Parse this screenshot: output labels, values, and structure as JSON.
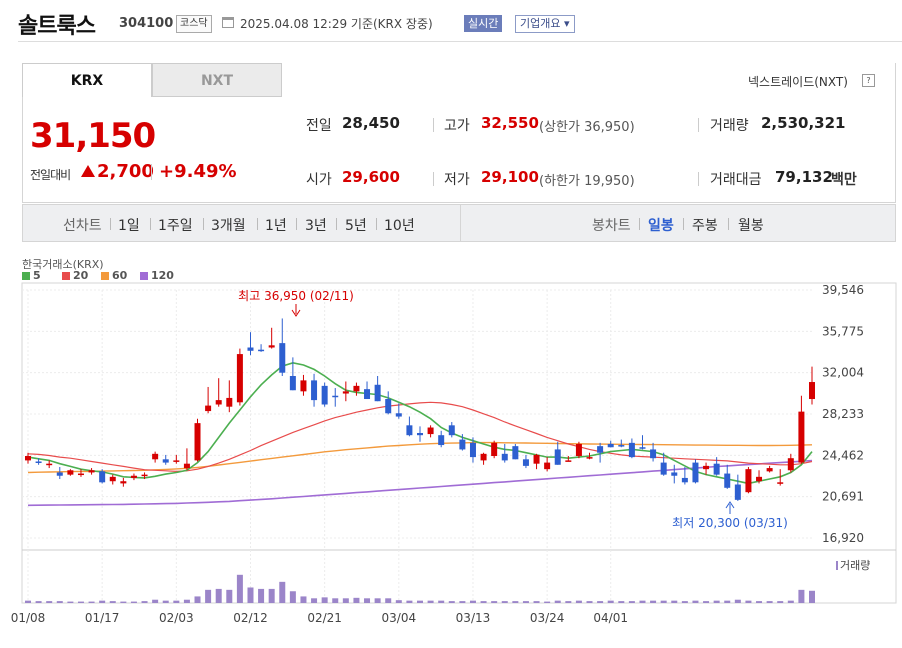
{
  "header": {
    "name": "솔트룩스",
    "code": "304100",
    "market": "코스닥",
    "datetime": "2025.04.08 12:29 기준(KRX 장중)",
    "realtime_label": "실시간",
    "company_label": "기업개요 ▾"
  },
  "tabs": [
    "KRX",
    "NXT"
  ],
  "nxt_link": "넥스트레이드(NXT)",
  "quote": {
    "price": "31,150",
    "change_label": "전일대비",
    "change_amount": "2,700",
    "change_pct": "+9.49%"
  },
  "stats": {
    "prev_close_label": "전일",
    "prev_close": "28,450",
    "high_label": "고가",
    "high": "32,550",
    "upper_limit": "(상한가 36,950)",
    "volume_label": "거래량",
    "volume": "2,530,321",
    "open_label": "시가",
    "open": "29,600",
    "low_label": "저가",
    "low": "29,100",
    "lower_limit": "(하한가 19,950)",
    "trade_value_label": "거래대금",
    "trade_value": "79,132",
    "trade_value_unit": "백만"
  },
  "toolbar": {
    "line_chart": "선차트",
    "periods": [
      "1일",
      "1주일",
      "3개월",
      "1년",
      "3년",
      "5년",
      "10년"
    ],
    "candle_chart": "봉차트",
    "candle_periods": [
      "일봉",
      "주봉",
      "월봉"
    ]
  },
  "colors": {
    "up": "#d60000",
    "down": "#2d5fd0",
    "ma5": "#4caf50",
    "ma20": "#e84c4c",
    "ma60": "#f39a3c",
    "ma120": "#a06cd5"
  },
  "chart_data": {
    "type": "candlestick",
    "title": "한국거래소(KRX)",
    "legend": [
      {
        "name": "5",
        "color": "#4caf50"
      },
      {
        "name": "20",
        "color": "#e84c4c"
      },
      {
        "name": "60",
        "color": "#f39a3c"
      },
      {
        "name": "120",
        "color": "#a06cd5"
      }
    ],
    "y_ticks": [
      "39,546",
      "35,775",
      "32,004",
      "28,233",
      "24,462",
      "20,691",
      "16,920"
    ],
    "ylim": [
      16920,
      39546
    ],
    "x_ticks": [
      "01/08",
      "01/17",
      "02/03",
      "02/12",
      "02/21",
      "03/04",
      "03/13",
      "03/24",
      "04/01"
    ],
    "x_tick_index": [
      0,
      7,
      14,
      21,
      28,
      35,
      42,
      49,
      55
    ],
    "annotation_high": "최고 36,950 (02/11)",
    "annotation_low": "최저 20,300 (03/31)",
    "volume_label": "거래량",
    "candles": [
      [
        24000,
        24700,
        23700,
        24400
      ],
      [
        23900,
        24200,
        23600,
        23800
      ],
      [
        23600,
        24000,
        23300,
        23700
      ],
      [
        22900,
        23400,
        22300,
        22600
      ],
      [
        22700,
        23200,
        22600,
        23100
      ],
      [
        22800,
        23200,
        22500,
        22800
      ],
      [
        22900,
        23300,
        22700,
        23100
      ],
      [
        23000,
        23200,
        21900,
        22000
      ],
      [
        22100,
        22700,
        21800,
        22500
      ],
      [
        21900,
        22400,
        21600,
        22100
      ],
      [
        22400,
        22800,
        22200,
        22600
      ],
      [
        22600,
        22900,
        22300,
        22700
      ],
      [
        24100,
        24800,
        23800,
        24600
      ],
      [
        24100,
        24500,
        23600,
        23800
      ],
      [
        23900,
        24500,
        23700,
        24000
      ],
      [
        23300,
        25100,
        23100,
        23700
      ],
      [
        24000,
        27800,
        23900,
        27400
      ],
      [
        28500,
        30700,
        28300,
        29000
      ],
      [
        29100,
        31500,
        28900,
        29500
      ],
      [
        28900,
        31300,
        28400,
        29700
      ],
      [
        29300,
        34200,
        29000,
        33700
      ],
      [
        34300,
        35700,
        33600,
        34000
      ],
      [
        34100,
        34600,
        33900,
        34000
      ],
      [
        34300,
        36100,
        34200,
        34500
      ],
      [
        34700,
        36950,
        31700,
        32000
      ],
      [
        31700,
        33400,
        30400,
        30400
      ],
      [
        30300,
        31800,
        29900,
        31300
      ],
      [
        31300,
        31900,
        28900,
        29500
      ],
      [
        30800,
        31100,
        28900,
        29100
      ],
      [
        29900,
        30600,
        28900,
        29800
      ],
      [
        30100,
        31200,
        29400,
        30300
      ],
      [
        30300,
        31100,
        29900,
        30800
      ],
      [
        30500,
        31200,
        29600,
        29600
      ],
      [
        30900,
        31700,
        29400,
        29400
      ],
      [
        29600,
        30300,
        28200,
        28300
      ],
      [
        28300,
        29200,
        27800,
        28000
      ],
      [
        27200,
        28000,
        26200,
        26300
      ],
      [
        26500,
        27100,
        25700,
        26300
      ],
      [
        26400,
        27200,
        26100,
        27000
      ],
      [
        26300,
        26700,
        25200,
        25400
      ],
      [
        27200,
        27500,
        26100,
        26300
      ],
      [
        25900,
        26400,
        24900,
        25000
      ],
      [
        25600,
        26100,
        23800,
        24300
      ],
      [
        24000,
        24700,
        23600,
        24600
      ],
      [
        24400,
        25800,
        24200,
        25600
      ],
      [
        24600,
        25500,
        23800,
        24000
      ],
      [
        25300,
        25500,
        24100,
        24100
      ],
      [
        24100,
        24500,
        23300,
        23500
      ],
      [
        23700,
        24600,
        23200,
        24500
      ],
      [
        23200,
        24300,
        23000,
        23800
      ],
      [
        25000,
        25700,
        23600,
        23600
      ],
      [
        24000,
        24400,
        23900,
        24000
      ],
      [
        24400,
        25700,
        24200,
        25500
      ],
      [
        24200,
        24700,
        24100,
        24300
      ],
      [
        25300,
        25600,
        23800,
        24700
      ],
      [
        25500,
        25800,
        25200,
        25200
      ],
      [
        25400,
        25900,
        25200,
        25300
      ],
      [
        25600,
        26000,
        24200,
        24300
      ],
      [
        25200,
        26300,
        25000,
        25100
      ],
      [
        25000,
        25600,
        23900,
        24200
      ],
      [
        23800,
        24700,
        22600,
        22700
      ],
      [
        22900,
        23600,
        21900,
        22600
      ],
      [
        22400,
        23400,
        21800,
        22000
      ],
      [
        23800,
        24100,
        21900,
        22000
      ],
      [
        23200,
        23800,
        22700,
        23500
      ],
      [
        23700,
        24300,
        22600,
        22700
      ],
      [
        22800,
        23600,
        21400,
        21500
      ],
      [
        21800,
        22700,
        20300,
        20400
      ],
      [
        21100,
        23400,
        21000,
        23200
      ],
      [
        22100,
        23100,
        21900,
        22500
      ],
      [
        23000,
        23500,
        22900,
        23300
      ],
      [
        22000,
        23200,
        21700,
        22000
      ],
      [
        23100,
        24600,
        22900,
        24200
      ],
      [
        23800,
        29900,
        23700,
        28450
      ],
      [
        29600,
        32550,
        29100,
        31150
      ]
    ],
    "ma5": [
      24300,
      24150,
      24000,
      23700,
      23450,
      23200,
      23050,
      22950,
      22750,
      22500,
      22450,
      22400,
      22550,
      22750,
      22900,
      23100,
      23800,
      24800,
      26100,
      27400,
      28600,
      29800,
      30900,
      31800,
      32600,
      32900,
      32700,
      32300,
      31700,
      31000,
      30400,
      30200,
      30100,
      30000,
      29700,
      29300,
      28900,
      28400,
      27800,
      27000,
      26500,
      26100,
      25800,
      25500,
      25200,
      25000,
      24900,
      24700,
      24500,
      24300,
      24300,
      24200,
      24300,
      24400,
      24600,
      24800,
      24900,
      25000,
      24900,
      24800,
      24500,
      24000,
      23500,
      23000,
      22700,
      22500,
      22300,
      22100,
      21900,
      22100,
      22300,
      22500,
      22900,
      23600,
      24800
    ],
    "ma20": [
      24600,
      24550,
      24450,
      24300,
      24200,
      24050,
      23900,
      23750,
      23600,
      23450,
      23300,
      23150,
      23100,
      23050,
      23000,
      23050,
      23200,
      23450,
      23750,
      24100,
      24500,
      24900,
      25350,
      25750,
      26150,
      26550,
      26900,
      27250,
      27600,
      27900,
      28150,
      28400,
      28600,
      28800,
      28950,
      29050,
      29150,
      29250,
      29300,
      29250,
      29100,
      28900,
      28600,
      28250,
      27900,
      27500,
      27150,
      26800,
      26450,
      26100,
      25800,
      25500,
      25250,
      25000,
      24800,
      24650,
      24500,
      24400,
      24350,
      24300,
      24250,
      24200,
      24150,
      24100,
      24050,
      24000,
      23950,
      23850,
      23750,
      23700,
      23650,
      23600,
      23600,
      23700,
      23900
    ],
    "ma60": [
      22900,
      22920,
      22940,
      22960,
      22980,
      23000,
      23000,
      23020,
      23040,
      23060,
      23080,
      23100,
      23140,
      23180,
      23220,
      23280,
      23360,
      23460,
      23580,
      23700,
      23820,
      23940,
      24060,
      24180,
      24300,
      24420,
      24540,
      24660,
      24780,
      24880,
      24980,
      25060,
      25140,
      25220,
      25300,
      25360,
      25420,
      25480,
      25520,
      25560,
      25580,
      25600,
      25620,
      25620,
      25620,
      25610,
      25600,
      25590,
      25570,
      25560,
      25540,
      25520,
      25510,
      25500,
      25490,
      25480,
      25470,
      25460,
      25450,
      25440,
      25430,
      25420,
      25410,
      25400,
      25400,
      25390,
      25380,
      25380,
      25370,
      25360,
      25360,
      25370,
      25380,
      25400,
      25420
    ],
    "ma120": [
      19900,
      19910,
      19920,
      19930,
      19940,
      19950,
      19960,
      19970,
      19980,
      19990,
      20000,
      20020,
      20040,
      20060,
      20080,
      20110,
      20140,
      20180,
      20220,
      20260,
      20320,
      20380,
      20440,
      20500,
      20570,
      20640,
      20710,
      20780,
      20850,
      20920,
      20990,
      21060,
      21130,
      21200,
      21270,
      21340,
      21410,
      21480,
      21550,
      21620,
      21690,
      21760,
      21830,
      21900,
      21970,
      22040,
      22110,
      22180,
      22250,
      22320,
      22390,
      22460,
      22530,
      22600,
      22670,
      22740,
      22810,
      22880,
      22950,
      23020,
      23090,
      23160,
      23230,
      23300,
      23370,
      23440,
      23500,
      23560,
      23620,
      23680,
      23740,
      23800,
      23860,
      23920,
      23990
    ],
    "volumes": [
      0.05,
      0.04,
      0.04,
      0.04,
      0.03,
      0.03,
      0.03,
      0.05,
      0.04,
      0.03,
      0.03,
      0.04,
      0.07,
      0.05,
      0.05,
      0.07,
      0.14,
      0.28,
      0.3,
      0.28,
      0.6,
      0.33,
      0.3,
      0.3,
      0.45,
      0.25,
      0.14,
      0.1,
      0.12,
      0.1,
      0.1,
      0.11,
      0.1,
      0.1,
      0.1,
      0.06,
      0.05,
      0.05,
      0.05,
      0.05,
      0.04,
      0.04,
      0.05,
      0.04,
      0.04,
      0.04,
      0.04,
      0.04,
      0.04,
      0.03,
      0.05,
      0.04,
      0.05,
      0.04,
      0.04,
      0.05,
      0.04,
      0.04,
      0.05,
      0.05,
      0.05,
      0.05,
      0.04,
      0.05,
      0.04,
      0.05,
      0.05,
      0.07,
      0.05,
      0.04,
      0.04,
      0.04,
      0.05,
      0.28,
      0.26
    ]
  }
}
